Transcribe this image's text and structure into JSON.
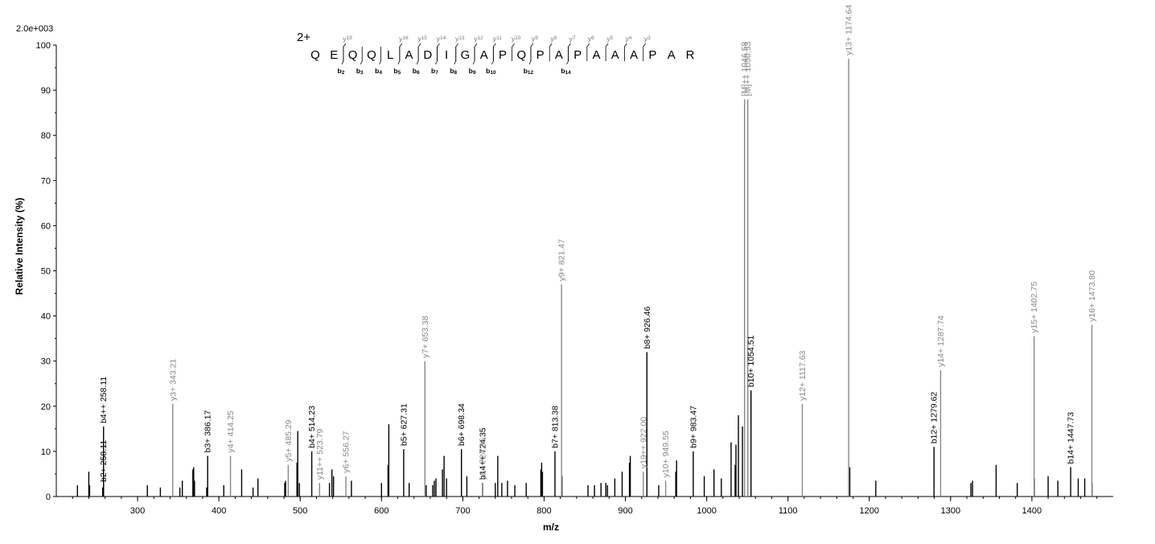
{
  "chart_data": {
    "type": "bar",
    "title": "",
    "scale_label": "2.0e+003",
    "xlabel": "m/z",
    "ylabel": "Relative   Intensity (%)",
    "xlim": [
      200,
      1500
    ],
    "ylim": [
      0,
      100
    ],
    "x_ticks": [
      300,
      400,
      500,
      600,
      700,
      800,
      900,
      1000,
      1100,
      1200,
      1300,
      1400
    ],
    "y_ticks": [
      0,
      10,
      20,
      30,
      40,
      50,
      60,
      70,
      80,
      90,
      100
    ],
    "colors": {
      "b_ion": "#000000",
      "y_ion": "#888888",
      "unassigned": "#000000"
    },
    "sequence": {
      "charge": "2+",
      "residues": [
        "Q",
        "E",
        "Q",
        "Q",
        "L",
        "A",
        "D",
        "I",
        "G",
        "A",
        "P",
        "Q",
        "P",
        "A",
        "P",
        "A",
        "A",
        "A",
        "P",
        "A",
        "R"
      ],
      "b_ions": [
        {
          "label": "b",
          "num": "2",
          "after": 2
        },
        {
          "label": "b",
          "num": "3",
          "after": 3
        },
        {
          "label": "b",
          "num": "4",
          "after": 4
        },
        {
          "label": "b",
          "num": "5",
          "after": 5
        },
        {
          "label": "b",
          "num": "6",
          "after": 6
        },
        {
          "label": "b",
          "num": "7",
          "after": 7
        },
        {
          "label": "b",
          "num": "8",
          "after": 8
        },
        {
          "label": "b",
          "num": "9",
          "after": 9
        },
        {
          "label": "b",
          "num": "10",
          "after": 10
        },
        {
          "label": "b",
          "num": "12",
          "after": 12
        },
        {
          "label": "b",
          "num": "14",
          "after": 14
        }
      ],
      "y_ions": [
        {
          "label": "y",
          "num": "19",
          "after": 2
        },
        {
          "label": "y",
          "num": "16",
          "after": 5
        },
        {
          "label": "y",
          "num": "15",
          "after": 6
        },
        {
          "label": "y",
          "num": "14",
          "after": 7
        },
        {
          "label": "y",
          "num": "13",
          "after": 8
        },
        {
          "label": "y",
          "num": "12",
          "after": 9
        },
        {
          "label": "y",
          "num": "11",
          "after": 10
        },
        {
          "label": "y",
          "num": "10",
          "after": 11
        },
        {
          "label": "y",
          "num": "9",
          "after": 12
        },
        {
          "label": "y",
          "num": "8",
          "after": 13
        },
        {
          "label": "y",
          "num": "7",
          "after": 14
        },
        {
          "label": "y",
          "num": "6",
          "after": 15
        },
        {
          "label": "y",
          "num": "5",
          "after": 16
        },
        {
          "label": "y",
          "num": "4",
          "after": 17
        },
        {
          "label": "y",
          "num": "3",
          "after": 18
        }
      ]
    },
    "labeled_peaks": [
      {
        "mz": 258.11,
        "intensity": 2.5,
        "ion": "b",
        "label": "b2+ 258.11"
      },
      {
        "mz": 258.11,
        "intensity": 15.5,
        "ion": "b",
        "label": "b4++ 258.11"
      },
      {
        "mz": 343.21,
        "intensity": 20.5,
        "ion": "y",
        "label": "y3+ 343.21"
      },
      {
        "mz": 386.17,
        "intensity": 9.0,
        "ion": "b",
        "label": "b3+ 386.17"
      },
      {
        "mz": 414.25,
        "intensity": 9.0,
        "ion": "y",
        "label": "y4+ 414.25"
      },
      {
        "mz": 485.29,
        "intensity": 7.0,
        "ion": "y",
        "label": "y5+ 485.29"
      },
      {
        "mz": 514.23,
        "intensity": 10.0,
        "ion": "b",
        "label": "b4+ 514.23"
      },
      {
        "mz": 523.79,
        "intensity": 3.0,
        "ion": "y",
        "label": "y11++ 523.79"
      },
      {
        "mz": 556.27,
        "intensity": 4.5,
        "ion": "y",
        "label": "y6+ 556.27"
      },
      {
        "mz": 627.31,
        "intensity": 10.5,
        "ion": "b",
        "label": "b5+ 627.31"
      },
      {
        "mz": 653.38,
        "intensity": 30.0,
        "ion": "y",
        "label": "y7+ 653.38"
      },
      {
        "mz": 698.34,
        "intensity": 10.5,
        "ion": "b",
        "label": "b6+ 698.34"
      },
      {
        "mz": 724.35,
        "intensity": 3.0,
        "ion": "b",
        "label": "b14++ 724.35"
      },
      {
        "mz": 724.35,
        "intensity": 3.0,
        "ion": "y",
        "label": "y8+ 724.35"
      },
      {
        "mz": 813.38,
        "intensity": 10.0,
        "ion": "b",
        "label": "b7+ 813.38"
      },
      {
        "mz": 821.47,
        "intensity": 47.0,
        "ion": "y",
        "label": "y9+ 821.47"
      },
      {
        "mz": 922.0,
        "intensity": 5.5,
        "ion": "y",
        "label": "y19++ 922.00"
      },
      {
        "mz": 926.46,
        "intensity": 32.0,
        "ion": "b",
        "label": "b8+ 926.46"
      },
      {
        "mz": 949.55,
        "intensity": 3.5,
        "ion": "y",
        "label": "y10+ 949.55"
      },
      {
        "mz": 983.47,
        "intensity": 10.0,
        "ion": "b",
        "label": "b9+ 983.47"
      },
      {
        "mz": 1046.58,
        "intensity": 88.0,
        "ion": "y",
        "label": "[M]++ 1046.58"
      },
      {
        "mz": 1050.53,
        "intensity": 88.0,
        "ion": "y",
        "label": "[M]++ 1050.53"
      },
      {
        "mz": 1054.51,
        "intensity": 23.5,
        "ion": "b",
        "label": "b10+ 1054.51"
      },
      {
        "mz": 1117.63,
        "intensity": 20.5,
        "ion": "y",
        "label": "y12+ 1117.63"
      },
      {
        "mz": 1174.64,
        "intensity": 97.0,
        "ion": "y",
        "label": "y13+ 1174.64"
      },
      {
        "mz": 1279.62,
        "intensity": 11.0,
        "ion": "b",
        "label": "b12+ 1279.62"
      },
      {
        "mz": 1287.74,
        "intensity": 28.0,
        "ion": "y",
        "label": "y14+ 1287.74"
      },
      {
        "mz": 1402.75,
        "intensity": 35.5,
        "ion": "y",
        "label": "y15+ 1402.75"
      },
      {
        "mz": 1447.73,
        "intensity": 6.5,
        "ion": "b",
        "label": "b14+ 1447.73"
      },
      {
        "mz": 1473.8,
        "intensity": 38.0,
        "ion": "y",
        "label": "y16+ 1473.80"
      }
    ],
    "unlabeled_peaks": [
      [
        226,
        2.5
      ],
      [
        240,
        5.5
      ],
      [
        241,
        2.5
      ],
      [
        257,
        2.0
      ],
      [
        312,
        2.5
      ],
      [
        328,
        2.0
      ],
      [
        352,
        2.0
      ],
      [
        355,
        3.5
      ],
      [
        368,
        6.0
      ],
      [
        369,
        6.5
      ],
      [
        370,
        3.5
      ],
      [
        385,
        2.0
      ],
      [
        406,
        2.5
      ],
      [
        428,
        6.0
      ],
      [
        442,
        2.0
      ],
      [
        448,
        4.0
      ],
      [
        481,
        3.0
      ],
      [
        482,
        3.5
      ],
      [
        496,
        7.5
      ],
      [
        497,
        14.5
      ],
      [
        499,
        3.0
      ],
      [
        536,
        3.0
      ],
      [
        539,
        6.0
      ],
      [
        541,
        4.5
      ],
      [
        563,
        3.5
      ],
      [
        600,
        3.0
      ],
      [
        608,
        7.0
      ],
      [
        609,
        16.0
      ],
      [
        634,
        3.0
      ],
      [
        655,
        2.5
      ],
      [
        663,
        2.5
      ],
      [
        665,
        3.5
      ],
      [
        667,
        4.0
      ],
      [
        675,
        6.0
      ],
      [
        677,
        9.0
      ],
      [
        680,
        4.0
      ],
      [
        705,
        4.5
      ],
      [
        740,
        3.0
      ],
      [
        743,
        9.0
      ],
      [
        748,
        3.0
      ],
      [
        755,
        3.5
      ],
      [
        764,
        2.5
      ],
      [
        778,
        3.0
      ],
      [
        796,
        6.0
      ],
      [
        797,
        7.5
      ],
      [
        798,
        5.5
      ],
      [
        822,
        4.5
      ],
      [
        854,
        2.5
      ],
      [
        862,
        2.5
      ],
      [
        870,
        3.0
      ],
      [
        876,
        3.0
      ],
      [
        878,
        2.5
      ],
      [
        887,
        4.0
      ],
      [
        896,
        5.5
      ],
      [
        905,
        7.5
      ],
      [
        906,
        9.0
      ],
      [
        941,
        2.5
      ],
      [
        962,
        5.5
      ],
      [
        963,
        8.0
      ],
      [
        997,
        4.5
      ],
      [
        1009,
        6.0
      ],
      [
        1018,
        4.0
      ],
      [
        1030,
        12.0
      ],
      [
        1035,
        7.0
      ],
      [
        1036,
        11.5
      ],
      [
        1039,
        18.0
      ],
      [
        1044,
        15.5
      ],
      [
        1176,
        6.5
      ],
      [
        1208,
        3.5
      ],
      [
        1325,
        3.0
      ],
      [
        1327,
        3.5
      ],
      [
        1356,
        7.0
      ],
      [
        1382,
        3.0
      ],
      [
        1403,
        4.0
      ],
      [
        1420,
        4.5
      ],
      [
        1432,
        3.5
      ],
      [
        1457,
        4.0
      ],
      [
        1465,
        4.0
      ],
      [
        1474,
        3.0
      ]
    ]
  }
}
